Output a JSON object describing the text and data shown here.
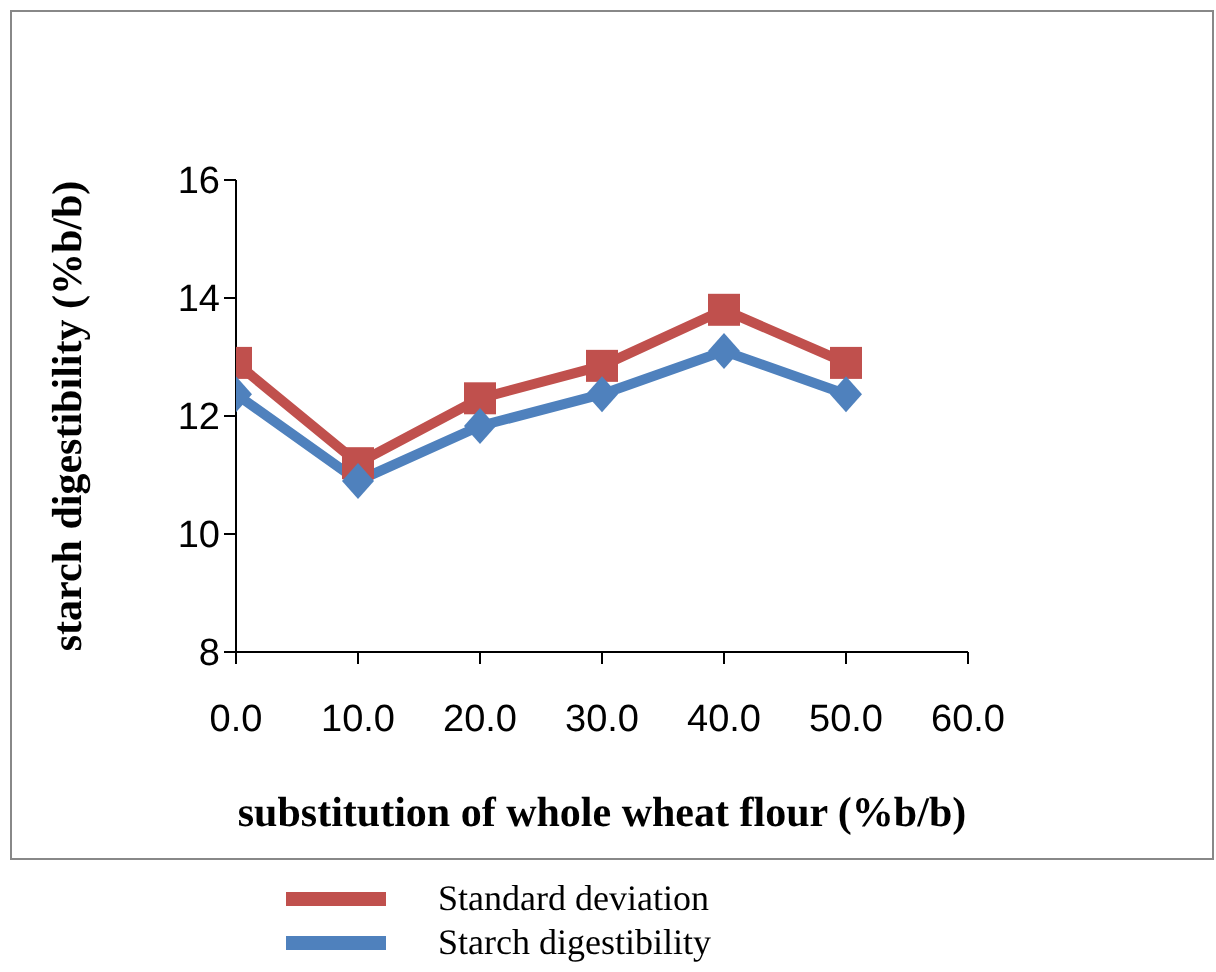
{
  "chart_data": {
    "type": "line",
    "xlabel": "substitution of whole wheat flour (%b/b)",
    "ylabel": "starch digestibility (%b/b)",
    "x": [
      0,
      10,
      20,
      30,
      40,
      50
    ],
    "series": [
      {
        "name": "Standard deviation",
        "color": "#c0504d",
        "marker": "square",
        "values": [
          12.9,
          11.2,
          12.3,
          12.85,
          13.8,
          12.9
        ]
      },
      {
        "name": "Starch digestibility",
        "color": "#4f81bd",
        "marker": "diamond",
        "values": [
          12.37,
          10.9,
          11.83,
          12.37,
          13.1,
          12.37
        ]
      }
    ],
    "xlim": [
      0,
      60
    ],
    "xticks": [
      {
        "value": 0,
        "label": "0.0"
      },
      {
        "value": 10,
        "label": "10.0"
      },
      {
        "value": 20,
        "label": "20.0"
      },
      {
        "value": 30,
        "label": "30.0"
      },
      {
        "value": 40,
        "label": "40.0"
      },
      {
        "value": 50,
        "label": "50.0"
      },
      {
        "value": 60,
        "label": "60.0"
      }
    ],
    "ylim": [
      8,
      16
    ],
    "yticks": [
      8,
      10,
      12,
      14,
      16
    ],
    "grid": false,
    "legend": "bottom"
  }
}
